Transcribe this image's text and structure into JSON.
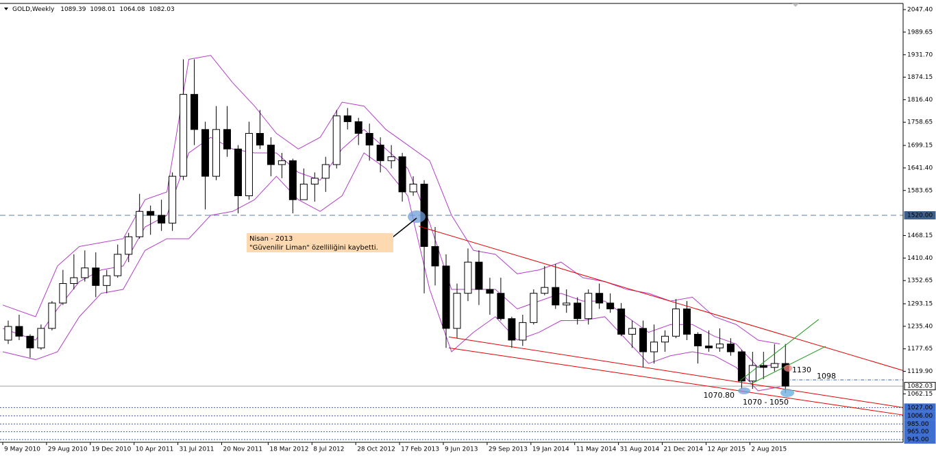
{
  "chart_data": {
    "type": "candlestick",
    "title": "GOLD,Weekly",
    "header_ohlc": [
      1089.39,
      1098.01,
      1064.08,
      1082.03
    ],
    "xlim": [
      "2010-05-02",
      "2016-08-28"
    ],
    "ylim": [
      938,
      2063.2
    ],
    "xticks": [
      {
        "value": "2010-05-09",
        "label": "9 May 2010"
      },
      {
        "value": "2010-08-29",
        "label": "29 Aug 2010"
      },
      {
        "value": "2010-12-19",
        "label": "19 Dec 2010"
      },
      {
        "value": "2011-04-10",
        "label": "10 Apr 2011"
      },
      {
        "value": "2011-07-31",
        "label": "31 Jul 2011"
      },
      {
        "value": "2011-11-20",
        "label": "20 Nov 2011"
      },
      {
        "value": "2012-03-18",
        "label": "18 Mar 2012"
      },
      {
        "value": "2012-07-08",
        "label": "8 Jul 2012"
      },
      {
        "value": "2012-10-28",
        "label": "28 Oct 2012"
      },
      {
        "value": "2013-02-17",
        "label": "17 Feb 2013"
      },
      {
        "value": "2013-06-09",
        "label": "9 Jun 2013"
      },
      {
        "value": "2013-09-29",
        "label": "29 Sep 2013"
      },
      {
        "value": "2014-01-19",
        "label": "19 Jan 2014"
      },
      {
        "value": "2014-05-11",
        "label": "11 May 2014"
      },
      {
        "value": "2014-08-31",
        "label": "31 Aug 2014"
      },
      {
        "value": "2014-12-21",
        "label": "21 Dec 2014"
      },
      {
        "value": "2015-04-12",
        "label": "12 Apr 2015"
      },
      {
        "value": "2015-08-02",
        "label": "2 Aug 2015"
      }
    ],
    "yticks": [
      {
        "value": 2047.4,
        "label": "2047.40"
      },
      {
        "value": 1989.65,
        "label": "1989.65"
      },
      {
        "value": 1931.7,
        "label": "1931.70"
      },
      {
        "value": 1874.15,
        "label": "1874.15"
      },
      {
        "value": 1816.4,
        "label": "1816.40"
      },
      {
        "value": 1758.65,
        "label": "1758.65"
      },
      {
        "value": 1699.15,
        "label": "1699.15"
      },
      {
        "value": 1641.4,
        "label": "1641.40"
      },
      {
        "value": 1583.65,
        "label": "1583.65"
      },
      {
        "value": 1468.15,
        "label": "1468.15"
      },
      {
        "value": 1410.4,
        "label": "1410.40"
      },
      {
        "value": 1352.65,
        "label": "1352.65"
      },
      {
        "value": 1293.15,
        "label": "1293.15"
      },
      {
        "value": 1235.4,
        "label": "1235.40"
      },
      {
        "value": 1177.65,
        "label": "1177.65"
      },
      {
        "value": 1119.9,
        "label": "1119.90"
      },
      {
        "value": 1062.15,
        "label": "1062.15"
      }
    ],
    "candles": {
      "up_color": "#ffffff",
      "down_color": "#000000",
      "outline": "#000000",
      "x": [
        "2010-05-09",
        "2010-06-06",
        "2010-07-04",
        "2010-08-01",
        "2010-08-29",
        "2010-09-26",
        "2010-10-24",
        "2010-11-21",
        "2010-12-19",
        "2011-01-16",
        "2011-02-13",
        "2011-03-13",
        "2011-04-10",
        "2011-05-08",
        "2011-06-05",
        "2011-07-03",
        "2011-07-31",
        "2011-08-28",
        "2011-09-25",
        "2011-10-23",
        "2011-11-20",
        "2011-12-18",
        "2012-01-15",
        "2012-02-12",
        "2012-03-11",
        "2012-04-08",
        "2012-05-06",
        "2012-06-03",
        "2012-07-01",
        "2012-07-29",
        "2012-08-26",
        "2012-09-23",
        "2012-10-21",
        "2012-11-18",
        "2012-12-16",
        "2013-01-13",
        "2013-02-10",
        "2013-03-10",
        "2013-04-07",
        "2013-05-05",
        "2013-06-02",
        "2013-06-30",
        "2013-07-28",
        "2013-08-25",
        "2013-09-22",
        "2013-10-20",
        "2013-11-17",
        "2013-12-15",
        "2014-01-12",
        "2014-02-09",
        "2014-03-09",
        "2014-04-06",
        "2014-05-04",
        "2014-06-01",
        "2014-06-29",
        "2014-07-27",
        "2014-08-24",
        "2014-09-21",
        "2014-10-19",
        "2014-11-16",
        "2014-12-14",
        "2015-01-11",
        "2015-02-08",
        "2015-03-08",
        "2015-04-05",
        "2015-05-03",
        "2015-05-31",
        "2015-06-28",
        "2015-07-26",
        "2015-08-23",
        "2015-09-20",
        "2015-10-18"
      ],
      "open": [
        1200,
        1235,
        1210,
        1180,
        1230,
        1295,
        1345,
        1360,
        1385,
        1340,
        1365,
        1420,
        1465,
        1530,
        1520,
        1500,
        1620,
        1830,
        1740,
        1620,
        1740,
        1690,
        1570,
        1730,
        1700,
        1650,
        1660,
        1560,
        1600,
        1615,
        1650,
        1775,
        1760,
        1730,
        1700,
        1660,
        1670,
        1580,
        1600,
        1440,
        1390,
        1230,
        1320,
        1400,
        1330,
        1320,
        1255,
        1200,
        1245,
        1320,
        1335,
        1290,
        1295,
        1255,
        1320,
        1295,
        1280,
        1215,
        1230,
        1170,
        1195,
        1210,
        1280,
        1215,
        1185,
        1180,
        1190,
        1170,
        1095,
        1135,
        1130,
        1140
      ],
      "high": [
        1250,
        1265,
        1215,
        1240,
        1300,
        1380,
        1420,
        1430,
        1425,
        1380,
        1445,
        1475,
        1575,
        1545,
        1560,
        1630,
        1920,
        1920,
        1760,
        1800,
        1800,
        1700,
        1760,
        1790,
        1720,
        1680,
        1665,
        1640,
        1630,
        1670,
        1790,
        1795,
        1770,
        1755,
        1720,
        1700,
        1680,
        1620,
        1610,
        1490,
        1420,
        1345,
        1435,
        1430,
        1360,
        1360,
        1260,
        1265,
        1330,
        1390,
        1395,
        1330,
        1310,
        1330,
        1345,
        1320,
        1295,
        1250,
        1250,
        1240,
        1225,
        1305,
        1300,
        1220,
        1225,
        1230,
        1205,
        1175,
        1170,
        1170,
        1190,
        1190
      ],
      "low": [
        1190,
        1200,
        1155,
        1175,
        1225,
        1290,
        1330,
        1350,
        1310,
        1320,
        1360,
        1400,
        1460,
        1470,
        1480,
        1480,
        1610,
        1700,
        1535,
        1610,
        1670,
        1525,
        1560,
        1690,
        1620,
        1615,
        1525,
        1560,
        1555,
        1580,
        1640,
        1740,
        1700,
        1660,
        1630,
        1640,
        1555,
        1570,
        1320,
        1340,
        1180,
        1205,
        1300,
        1290,
        1265,
        1250,
        1180,
        1185,
        1240,
        1315,
        1280,
        1270,
        1240,
        1240,
        1280,
        1270,
        1210,
        1180,
        1130,
        1140,
        1170,
        1205,
        1200,
        1140,
        1170,
        1170,
        1160,
        1075,
        1075,
        1100,
        1120,
        1064
      ],
      "close": [
        1235,
        1210,
        1180,
        1230,
        1295,
        1345,
        1360,
        1385,
        1340,
        1365,
        1420,
        1465,
        1530,
        1520,
        1500,
        1620,
        1830,
        1740,
        1620,
        1740,
        1690,
        1570,
        1730,
        1700,
        1650,
        1660,
        1560,
        1600,
        1615,
        1650,
        1775,
        1760,
        1730,
        1700,
        1660,
        1670,
        1580,
        1600,
        1440,
        1390,
        1230,
        1320,
        1400,
        1330,
        1320,
        1255,
        1200,
        1245,
        1320,
        1335,
        1290,
        1295,
        1255,
        1320,
        1295,
        1280,
        1215,
        1230,
        1170,
        1195,
        1210,
        1280,
        1215,
        1185,
        1180,
        1190,
        1170,
        1095,
        1135,
        1130,
        1140,
        1082
      ]
    },
    "bands": {
      "color": "#b23ec8",
      "x": [
        "2010-05-09",
        "2010-08-01",
        "2010-09-26",
        "2010-11-21",
        "2011-01-16",
        "2011-03-13",
        "2011-05-08",
        "2011-07-03",
        "2011-08-28",
        "2011-10-23",
        "2011-12-18",
        "2012-02-12",
        "2012-04-08",
        "2012-06-03",
        "2012-07-29",
        "2012-09-23",
        "2012-11-18",
        "2013-01-13",
        "2013-03-10",
        "2013-05-05",
        "2013-06-30",
        "2013-08-25",
        "2013-10-20",
        "2013-12-15",
        "2014-02-09",
        "2014-04-06",
        "2014-06-01",
        "2014-07-27",
        "2014-09-21",
        "2014-11-16",
        "2015-01-11",
        "2015-03-08",
        "2015-05-03",
        "2015-06-28",
        "2015-08-23",
        "2015-10-18"
      ],
      "upper": [
        1290,
        1260,
        1390,
        1440,
        1450,
        1460,
        1560,
        1580,
        1920,
        1930,
        1860,
        1800,
        1730,
        1690,
        1720,
        1810,
        1800,
        1740,
        1700,
        1660,
        1520,
        1430,
        1420,
        1370,
        1380,
        1400,
        1360,
        1350,
        1330,
        1320,
        1300,
        1310,
        1260,
        1240,
        1200,
        1190
      ],
      "middle": [
        1230,
        1200,
        1280,
        1350,
        1380,
        1390,
        1490,
        1520,
        1680,
        1720,
        1690,
        1680,
        1680,
        1630,
        1610,
        1690,
        1740,
        1690,
        1640,
        1500,
        1330,
        1330,
        1330,
        1280,
        1300,
        1320,
        1300,
        1300,
        1260,
        1220,
        1240,
        1240,
        1210,
        1190,
        1130,
        1140
      ],
      "lower": [
        1170,
        1150,
        1170,
        1260,
        1320,
        1330,
        1430,
        1460,
        1460,
        1520,
        1530,
        1560,
        1620,
        1560,
        1530,
        1570,
        1680,
        1640,
        1570,
        1330,
        1170,
        1220,
        1260,
        1200,
        1220,
        1250,
        1250,
        1260,
        1200,
        1140,
        1160,
        1170,
        1160,
        1130,
        1070,
        1080
      ]
    },
    "hlines": [
      {
        "value": 1520,
        "label": "1520.00",
        "color": "#5d7fa8",
        "dash": "8 5",
        "label_bg": "#3c5f8c",
        "label_color": "#ffffff"
      },
      {
        "value": 1082.03,
        "label": "1082.03",
        "color": "#a0a0a0",
        "dash": "none",
        "label_bg": "#ffffff",
        "label_color": "#000000"
      },
      {
        "value": 1027,
        "label": "1027.00",
        "color": "#3a5fa8",
        "dash": "2 2",
        "label_bg": "#3f6fd0",
        "label_color": "#ffffff"
      },
      {
        "value": 1006,
        "label": "1006.00",
        "color": "#3a5fa8",
        "dash": "2 2",
        "label_bg": "#3f6fd0",
        "label_color": "#ffffff"
      },
      {
        "value": 985,
        "label": "985.00",
        "color": "#3a5fa8",
        "dash": "2 2",
        "label_bg": "#3f6fd0",
        "label_color": "#ffffff"
      },
      {
        "value": 965,
        "label": "965.00",
        "color": "#3a5fa8",
        "dash": "2 2",
        "label_bg": "#3f6fd0",
        "label_color": "#ffffff"
      },
      {
        "value": 945,
        "label": "945.00",
        "color": "#3a5fa8",
        "dash": "2 2",
        "label_bg": "#3f6fd0",
        "label_color": "#ffffff"
      }
    ],
    "level_1098": {
      "value": 1098,
      "from": "2015-11-01",
      "color": "#3a5fa8"
    },
    "trendlines": [
      {
        "color": "#e00000",
        "from": [
          "2013-04-07",
          1492
        ],
        "to": [
          "2016-08-28",
          1122
        ]
      },
      {
        "color": "#e00000",
        "from": [
          "2013-06-23",
          1180
        ],
        "to": [
          "2016-08-28",
          1008
        ]
      },
      {
        "color": "#e00000",
        "from": [
          "2013-06-23",
          1208
        ],
        "to": [
          "2016-08-28",
          1027
        ]
      },
      {
        "color": "#1e9a1e",
        "from": [
          "2015-07-08",
          1096
        ],
        "to": [
          "2016-01-25",
          1253
        ]
      },
      {
        "color": "#1e9a1e",
        "from": [
          "2015-08-03",
          1087
        ],
        "to": [
          "2016-02-12",
          1184
        ]
      }
    ],
    "note": {
      "lines": [
        "Nisan - 2013",
        "\"Güvenilir Liman\" özelliliğini kaybetti."
      ],
      "bg": "#fcd9b0"
    },
    "annotations": [
      "1130",
      "1098",
      "1070.80",
      "1070 - 1050"
    ]
  }
}
